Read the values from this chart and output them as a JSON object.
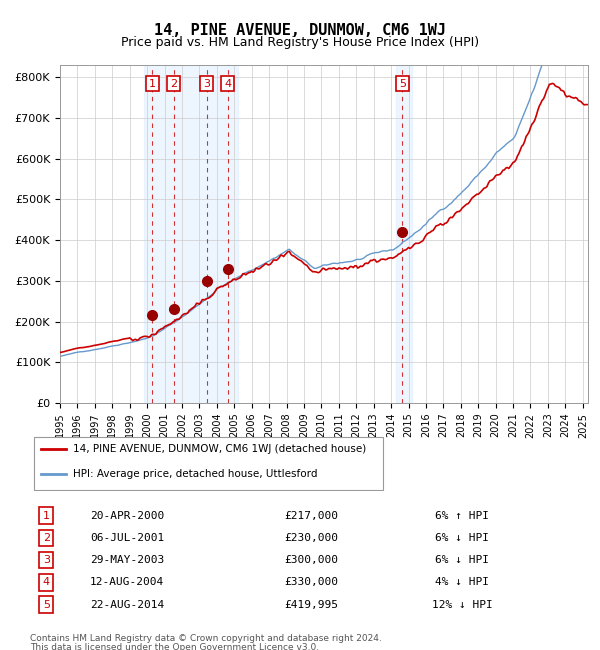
{
  "title": "14, PINE AVENUE, DUNMOW, CM6 1WJ",
  "subtitle": "Price paid vs. HM Land Registry's House Price Index (HPI)",
  "legend_line1": "14, PINE AVENUE, DUNMOW, CM6 1WJ (detached house)",
  "legend_line2": "HPI: Average price, detached house, Uttlesford",
  "footer_line1": "Contains HM Land Registry data © Crown copyright and database right 2024.",
  "footer_line2": "This data is licensed under the Open Government Licence v3.0.",
  "transactions": [
    {
      "num": 1,
      "date": "20-APR-2000",
      "price": 217000,
      "pct": "6%",
      "dir": "↑",
      "year_x": 2000.3
    },
    {
      "num": 2,
      "date": "06-JUL-2001",
      "price": 230000,
      "pct": "6%",
      "dir": "↓",
      "year_x": 2001.5
    },
    {
      "num": 3,
      "date": "29-MAY-2003",
      "price": 300000,
      "pct": "6%",
      "dir": "↓",
      "year_x": 2003.4
    },
    {
      "num": 4,
      "date": "12-AUG-2004",
      "price": 330000,
      "pct": "4%",
      "dir": "↓",
      "year_x": 2004.6
    },
    {
      "num": 5,
      "date": "22-AUG-2014",
      "price": 419995,
      "pct": "12%",
      "dir": "↓",
      "year_x": 2014.6
    }
  ],
  "hpi_color": "#6699cc",
  "price_color": "#cc0000",
  "dashed_color": "#cc0000",
  "shade_color": "#ddeeff",
  "dot_color": "#990000",
  "box_color": "#cc0000",
  "ylim": [
    0,
    830000
  ],
  "xlim_start": 1995.0,
  "xlim_end": 2025.3,
  "yticks": [
    0,
    100000,
    200000,
    300000,
    400000,
    500000,
    600000,
    700000,
    800000
  ]
}
